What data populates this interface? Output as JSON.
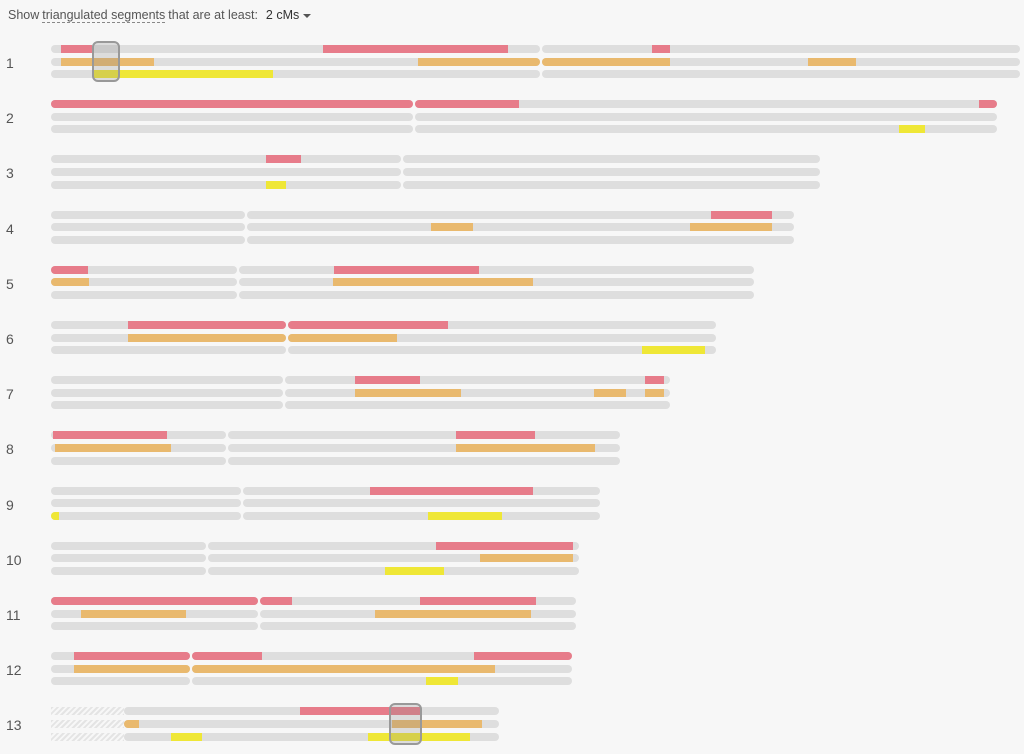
{
  "toolbar": {
    "prefix": "Show",
    "link_text": "triangulated segments",
    "suffix": "that are at least:",
    "min_value": "2 cMs"
  },
  "colors": {
    "track": "#dedede",
    "match_1": "#e77c8a",
    "match_2": "#e9b96e",
    "match_3": "#efe736",
    "highlight_border": "#999999"
  },
  "chromosomes": [
    {
      "label": "1",
      "tracks": [
        {
          "extents": [
            [
              51,
              540
            ],
            [
              542,
              1020
            ]
          ],
          "segs": [
            [
              61,
              92,
              "red"
            ],
            [
              323,
              508,
              "red"
            ],
            [
              652,
              670,
              "red"
            ]
          ]
        },
        {
          "extents": [
            [
              51,
              540
            ],
            [
              542,
              1020
            ]
          ],
          "segs": [
            [
              61,
              154,
              "orange"
            ],
            [
              418,
              540,
              "orange"
            ],
            [
              542,
              670,
              "orange"
            ],
            [
              808,
              856,
              "orange"
            ]
          ]
        },
        {
          "extents": [
            [
              51,
              540
            ],
            [
              542,
              1020
            ]
          ],
          "segs": [
            [
              94,
              273,
              "yellow"
            ]
          ]
        }
      ]
    },
    {
      "label": "2",
      "tracks": [
        {
          "extents": [
            [
              51,
              413
            ],
            [
              415,
              997
            ]
          ],
          "segs": [
            [
              51,
              413,
              "red"
            ],
            [
              415,
              519,
              "red"
            ],
            [
              979,
              997,
              "red"
            ]
          ]
        },
        {
          "extents": [
            [
              51,
              413
            ],
            [
              415,
              997
            ]
          ],
          "segs": []
        },
        {
          "extents": [
            [
              51,
              413
            ],
            [
              415,
              997
            ]
          ],
          "segs": [
            [
              899,
              925,
              "yellow"
            ]
          ]
        }
      ]
    },
    {
      "label": "3",
      "tracks": [
        {
          "extents": [
            [
              51,
              401
            ],
            [
              403,
              820
            ]
          ],
          "segs": [
            [
              266,
              301,
              "red"
            ]
          ]
        },
        {
          "extents": [
            [
              51,
              401
            ],
            [
              403,
              820
            ]
          ],
          "segs": []
        },
        {
          "extents": [
            [
              51,
              401
            ],
            [
              403,
              820
            ]
          ],
          "segs": [
            [
              266,
              286,
              "yellow"
            ]
          ]
        }
      ]
    },
    {
      "label": "4",
      "tracks": [
        {
          "extents": [
            [
              51,
              245
            ],
            [
              247,
              794
            ]
          ],
          "segs": [
            [
              711,
              772,
              "red"
            ]
          ]
        },
        {
          "extents": [
            [
              51,
              245
            ],
            [
              247,
              794
            ]
          ],
          "segs": [
            [
              431,
              473,
              "orange"
            ],
            [
              690,
              772,
              "orange"
            ]
          ]
        },
        {
          "extents": [
            [
              51,
              245
            ],
            [
              247,
              794
            ]
          ],
          "segs": []
        }
      ]
    },
    {
      "label": "5",
      "tracks": [
        {
          "extents": [
            [
              51,
              237
            ],
            [
              239,
              754
            ]
          ],
          "segs": [
            [
              51,
              88,
              "red"
            ],
            [
              334,
              479,
              "red"
            ]
          ]
        },
        {
          "extents": [
            [
              51,
              237
            ],
            [
              239,
              754
            ]
          ],
          "segs": [
            [
              51,
              89,
              "orange"
            ],
            [
              333,
              533,
              "orange"
            ]
          ]
        },
        {
          "extents": [
            [
              51,
              237
            ],
            [
              239,
              754
            ]
          ],
          "segs": []
        }
      ]
    },
    {
      "label": "6",
      "tracks": [
        {
          "extents": [
            [
              51,
              286
            ],
            [
              288,
              716
            ]
          ],
          "segs": [
            [
              128,
              286,
              "red"
            ],
            [
              288,
              448,
              "red"
            ]
          ]
        },
        {
          "extents": [
            [
              51,
              286
            ],
            [
              288,
              716
            ]
          ],
          "segs": [
            [
              128,
              286,
              "orange"
            ],
            [
              288,
              397,
              "orange"
            ]
          ]
        },
        {
          "extents": [
            [
              51,
              286
            ],
            [
              288,
              716
            ]
          ],
          "segs": [
            [
              642,
              705,
              "yellow"
            ]
          ]
        }
      ]
    },
    {
      "label": "7",
      "tracks": [
        {
          "extents": [
            [
              51,
              283
            ],
            [
              285,
              670
            ]
          ],
          "segs": [
            [
              355,
              420,
              "red"
            ],
            [
              645,
              664,
              "red"
            ]
          ]
        },
        {
          "extents": [
            [
              51,
              283
            ],
            [
              285,
              670
            ]
          ],
          "segs": [
            [
              355,
              461,
              "orange"
            ],
            [
              594,
              626,
              "orange"
            ],
            [
              645,
              664,
              "orange"
            ]
          ]
        },
        {
          "extents": [
            [
              51,
              283
            ],
            [
              285,
              670
            ]
          ],
          "segs": []
        }
      ]
    },
    {
      "label": "8",
      "tracks": [
        {
          "extents": [
            [
              51,
              226
            ],
            [
              228,
              620
            ]
          ],
          "segs": [
            [
              53,
              167,
              "red"
            ],
            [
              456,
              535,
              "red"
            ]
          ]
        },
        {
          "extents": [
            [
              51,
              226
            ],
            [
              228,
              620
            ]
          ],
          "segs": [
            [
              55,
              171,
              "orange"
            ],
            [
              456,
              595,
              "orange"
            ]
          ]
        },
        {
          "extents": [
            [
              51,
              226
            ],
            [
              228,
              620
            ]
          ],
          "segs": []
        }
      ]
    },
    {
      "label": "9",
      "tracks": [
        {
          "extents": [
            [
              51,
              241
            ],
            [
              243,
              600
            ]
          ],
          "segs": [
            [
              370,
              533,
              "red"
            ]
          ]
        },
        {
          "extents": [
            [
              51,
              241
            ],
            [
              243,
              600
            ]
          ],
          "segs": []
        },
        {
          "extents": [
            [
              51,
              241
            ],
            [
              243,
              600
            ]
          ],
          "segs": [
            [
              51,
              59,
              "yellow"
            ],
            [
              428,
              502,
              "yellow"
            ]
          ]
        }
      ]
    },
    {
      "label": "10",
      "tracks": [
        {
          "extents": [
            [
              51,
              206
            ],
            [
              208,
              579
            ]
          ],
          "segs": [
            [
              436,
              573,
              "red"
            ]
          ]
        },
        {
          "extents": [
            [
              51,
              206
            ],
            [
              208,
              579
            ]
          ],
          "segs": [
            [
              480,
              573,
              "orange"
            ]
          ]
        },
        {
          "extents": [
            [
              51,
              206
            ],
            [
              208,
              579
            ]
          ],
          "segs": [
            [
              385,
              444,
              "yellow"
            ]
          ]
        }
      ]
    },
    {
      "label": "11",
      "tracks": [
        {
          "extents": [
            [
              51,
              258
            ],
            [
              260,
              576
            ]
          ],
          "segs": [
            [
              51,
              258,
              "red"
            ],
            [
              260,
              292,
              "red"
            ],
            [
              420,
              536,
              "red"
            ]
          ]
        },
        {
          "extents": [
            [
              51,
              258
            ],
            [
              260,
              576
            ]
          ],
          "segs": [
            [
              81,
              186,
              "orange"
            ],
            [
              375,
              531,
              "orange"
            ]
          ]
        },
        {
          "extents": [
            [
              51,
              258
            ],
            [
              260,
              576
            ]
          ],
          "segs": []
        }
      ]
    },
    {
      "label": "12",
      "tracks": [
        {
          "extents": [
            [
              51,
              190
            ],
            [
              192,
              572
            ]
          ],
          "segs": [
            [
              74,
              190,
              "red"
            ],
            [
              192,
              262,
              "red"
            ],
            [
              474,
              572,
              "red"
            ]
          ]
        },
        {
          "extents": [
            [
              51,
              190
            ],
            [
              192,
              572
            ]
          ],
          "segs": [
            [
              74,
              190,
              "orange"
            ],
            [
              192,
              495,
              "orange"
            ]
          ]
        },
        {
          "extents": [
            [
              51,
              190
            ],
            [
              192,
              572
            ]
          ],
          "segs": [
            [
              426,
              458,
              "yellow"
            ]
          ]
        }
      ]
    },
    {
      "label": "13",
      "hatched": [
        51,
        124
      ],
      "tracks": [
        {
          "extents": [
            [
              124,
              499
            ]
          ],
          "segs": [
            [
              300,
              420,
              "red"
            ]
          ]
        },
        {
          "extents": [
            [
              124,
              499
            ]
          ],
          "segs": [
            [
              124,
              139,
              "orange"
            ],
            [
              392,
              482,
              "orange"
            ]
          ]
        },
        {
          "extents": [
            [
              124,
              499
            ]
          ],
          "segs": [
            [
              171,
              202,
              "yellow"
            ],
            [
              368,
              470,
              "yellow"
            ]
          ]
        }
      ]
    }
  ],
  "highlights": [
    {
      "name": "selection-box-chr1",
      "chrom": 0,
      "x1": 92,
      "x2": 120
    },
    {
      "name": "selection-box-chr13",
      "chrom": 12,
      "x1": 389,
      "x2": 422
    }
  ]
}
